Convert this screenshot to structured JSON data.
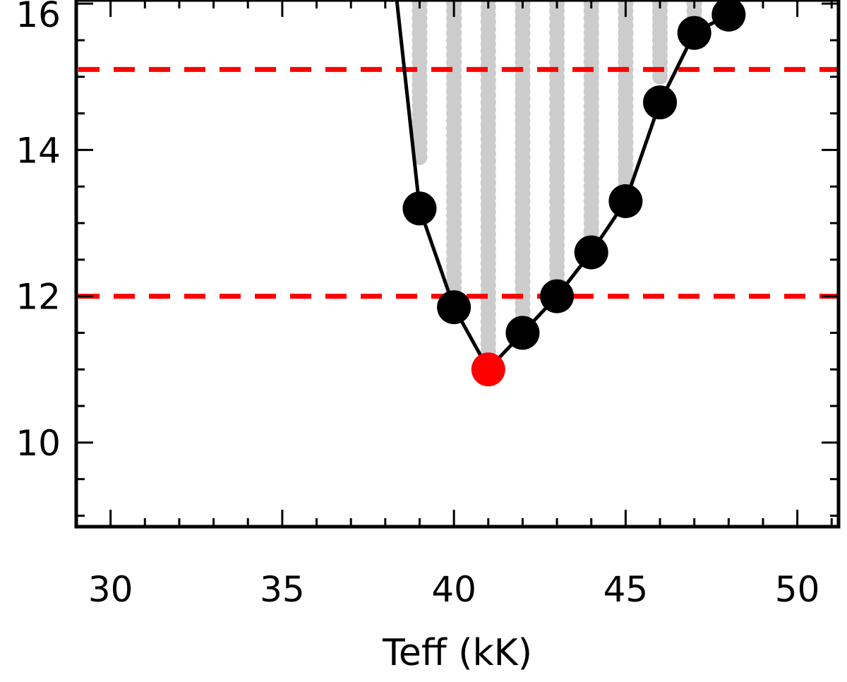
{
  "chart_data": {
    "type": "scatter",
    "title": "",
    "xlabel": "Teff (kK)",
    "ylabel": "",
    "xlim": [
      29,
      51.2
    ],
    "ylim": [
      8.85,
      16.05
    ],
    "x_ticks": [
      30,
      35,
      40,
      45,
      50
    ],
    "x_tick_labels": [
      "30",
      "35",
      "40",
      "45",
      "50"
    ],
    "y_ticks": [
      10,
      12,
      14,
      16
    ],
    "y_tick_labels": [
      "10",
      "12",
      "14",
      "16"
    ],
    "x_minor_step": 1,
    "y_minor_step": 0.5,
    "grid": false,
    "legend": "none",
    "reference_lines": [
      {
        "y": 15.1,
        "color": "#ff0000",
        "style": "dashed"
      },
      {
        "y": 12.0,
        "color": "#ff0000",
        "style": "dashed"
      }
    ],
    "boundary_curve": {
      "color": "#000000",
      "x": [
        38.3,
        39.0,
        40.0,
        41.0,
        42.0,
        43.0,
        44.0,
        45.0,
        46.0,
        47.0,
        48.0,
        48.7
      ],
      "y": [
        16.2,
        13.2,
        11.85,
        11.0,
        11.5,
        12.0,
        12.6,
        13.3,
        14.65,
        15.6,
        15.85,
        16.3
      ],
      "markers": [
        {
          "x": 39.0,
          "y": 13.2
        },
        {
          "x": 40.0,
          "y": 11.85
        },
        {
          "x": 42.0,
          "y": 11.5
        },
        {
          "x": 43.0,
          "y": 12.0
        },
        {
          "x": 44.0,
          "y": 12.6
        },
        {
          "x": 45.0,
          "y": 13.3
        },
        {
          "x": 46.0,
          "y": 14.65
        },
        {
          "x": 47.0,
          "y": 15.6
        },
        {
          "x": 48.0,
          "y": 15.85
        }
      ]
    },
    "best_fit": {
      "x": 41.0,
      "y": 11.0,
      "color": "#ff0000"
    },
    "grid_models": {
      "color": "#cccccc",
      "columns": [
        {
          "x": 39.0,
          "ymin": 13.9,
          "ymax": 16.2
        },
        {
          "x": 40.0,
          "ymin": 12.0,
          "ymax": 16.2
        },
        {
          "x": 41.0,
          "ymin": 11.15,
          "ymax": 16.2
        },
        {
          "x": 42.0,
          "ymin": 11.5,
          "ymax": 16.2
        },
        {
          "x": 43.0,
          "ymin": 12.0,
          "ymax": 16.2
        },
        {
          "x": 44.0,
          "ymin": 12.6,
          "ymax": 16.2
        },
        {
          "x": 45.0,
          "ymin": 13.4,
          "ymax": 16.2
        },
        {
          "x": 46.0,
          "ymin": 15.0,
          "ymax": 16.2
        },
        {
          "x": 47.0,
          "ymin": 15.8,
          "ymax": 16.2
        }
      ],
      "y_step": 0.1
    }
  }
}
